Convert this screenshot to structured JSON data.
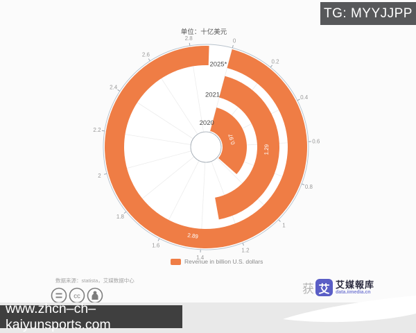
{
  "badge": {
    "text": "TG: MYYJJPP",
    "bg": "#57585a"
  },
  "chart_data": {
    "type": "bar",
    "polar": true,
    "title": "单位：十亿美元",
    "categories": [
      "2020",
      "2021",
      "2025*"
    ],
    "values": [
      0.97,
      1.29,
      2.89
    ],
    "value_labels": [
      "0.97",
      "1.29",
      "2.89"
    ],
    "bar_color": "#ef7d45",
    "angular_axis": {
      "min": 0,
      "max": 3,
      "tick_step": 0.2,
      "start_offset_deg": 15,
      "tick_labels": [
        "0",
        "0.2",
        "0.4",
        "0.6",
        "0.8",
        "1",
        "1.2",
        "1.4",
        "1.6",
        "1.8",
        "2",
        "2.2",
        "2.4",
        "2.6",
        "2.8"
      ]
    },
    "legend": [
      {
        "label": "Revenue in billion U.S. dollars",
        "color": "#ef7d45"
      }
    ],
    "legend_position": "bottom"
  },
  "legend": {
    "label": "Revenue in billion U.S. dollars",
    "swatch_color": "#ef7d45"
  },
  "footer": {
    "source": "数据来源：statista，艾媒数据中心",
    "license_icons": [
      "equals-icon",
      "cc-icon",
      "person-icon"
    ],
    "logo": {
      "badge_char": "艾",
      "name": "艾媒報库",
      "site": "data.iimedia.cn",
      "watermark_char": "获"
    },
    "url_bar": "www.zhcn–ch–kaiyunsports.com"
  }
}
